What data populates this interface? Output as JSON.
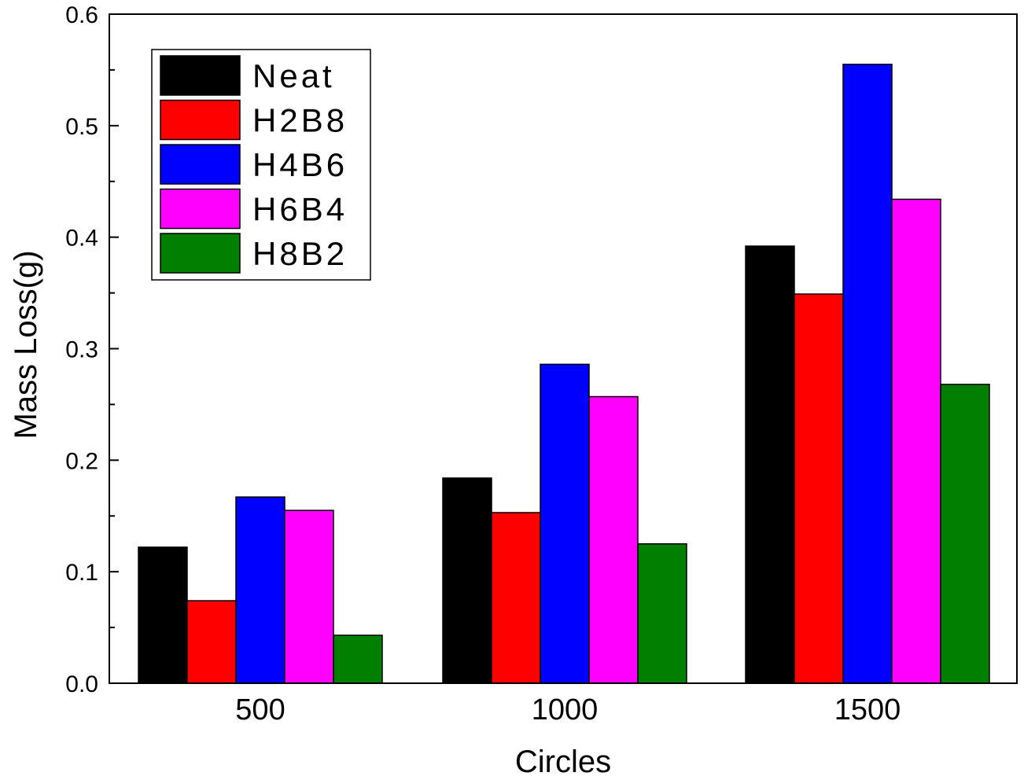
{
  "chart_data": {
    "type": "bar",
    "title": "",
    "xlabel": "Circles",
    "ylabel": "Mass Loss(g)",
    "categories": [
      "500",
      "1000",
      "1500"
    ],
    "ylim": [
      0,
      0.6
    ],
    "yticks": [
      "0.0",
      "0.1",
      "0.2",
      "0.3",
      "0.4",
      "0.5",
      "0.6"
    ],
    "grid": false,
    "legend_position": "top-left",
    "series": [
      {
        "name": "Neat",
        "color": "#000000",
        "values": [
          0.122,
          0.184,
          0.392
        ]
      },
      {
        "name": "H2B8",
        "color": "#ff0000",
        "values": [
          0.074,
          0.153,
          0.349
        ]
      },
      {
        "name": "H4B6",
        "color": "#0000ff",
        "values": [
          0.167,
          0.286,
          0.555
        ]
      },
      {
        "name": "H6B4",
        "color": "#ff00ff",
        "values": [
          0.155,
          0.257,
          0.434
        ]
      },
      {
        "name": "H8B2",
        "color": "#007f00",
        "values": [
          0.043,
          0.125,
          0.268
        ]
      }
    ]
  }
}
